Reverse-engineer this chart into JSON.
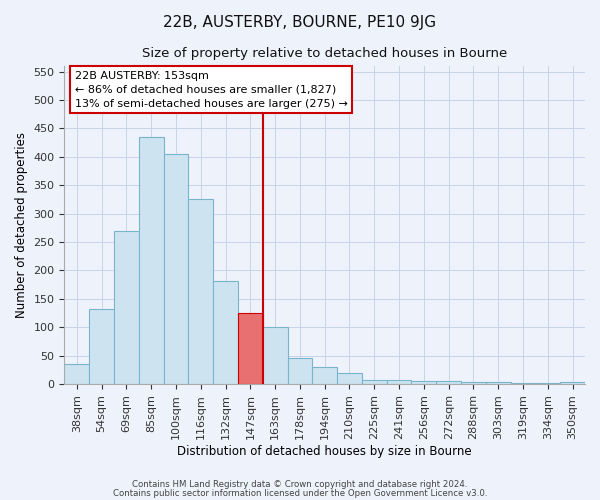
{
  "title": "22B, AUSTERBY, BOURNE, PE10 9JG",
  "subtitle": "Size of property relative to detached houses in Bourne",
  "xlabel": "Distribution of detached houses by size in Bourne",
  "ylabel": "Number of detached properties",
  "bar_labels": [
    "38sqm",
    "54sqm",
    "69sqm",
    "85sqm",
    "100sqm",
    "116sqm",
    "132sqm",
    "147sqm",
    "163sqm",
    "178sqm",
    "194sqm",
    "210sqm",
    "225sqm",
    "241sqm",
    "256sqm",
    "272sqm",
    "288sqm",
    "303sqm",
    "319sqm",
    "334sqm",
    "350sqm"
  ],
  "bar_values": [
    35,
    133,
    270,
    435,
    405,
    325,
    182,
    125,
    100,
    46,
    30,
    20,
    8,
    8,
    5,
    5,
    3,
    3,
    2,
    2,
    3
  ],
  "bar_color": "#cde4f0",
  "bar_edge_color": "#7ab4cc",
  "highlight_bar_index": 7,
  "highlight_bar_color": "#e87070",
  "highlight_bar_edge_color": "#cc0000",
  "vline_color": "#cc0000",
  "ylim": [
    0,
    560
  ],
  "yticks": [
    0,
    50,
    100,
    150,
    200,
    250,
    300,
    350,
    400,
    450,
    500,
    550
  ],
  "annotation_title": "22B AUSTERBY: 153sqm",
  "annotation_line1": "← 86% of detached houses are smaller (1,827)",
  "annotation_line2": "13% of semi-detached houses are larger (275) →",
  "footer1": "Contains HM Land Registry data © Crown copyright and database right 2024.",
  "footer2": "Contains public sector information licensed under the Open Government Licence v3.0.",
  "bg_color": "#eef2fa",
  "grid_color": "#c8d4e8",
  "plot_bg_color": "#eef2fa"
}
